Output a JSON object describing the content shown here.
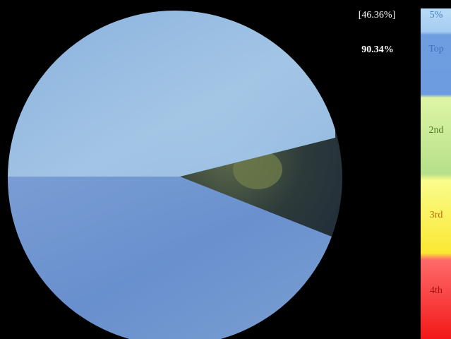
{
  "labels": {
    "upper_share": "[46.36%]",
    "total_share": "90.34%"
  },
  "legend": {
    "items": [
      "5%",
      "Top",
      "2nd",
      "3rd",
      "4th"
    ]
  }
}
